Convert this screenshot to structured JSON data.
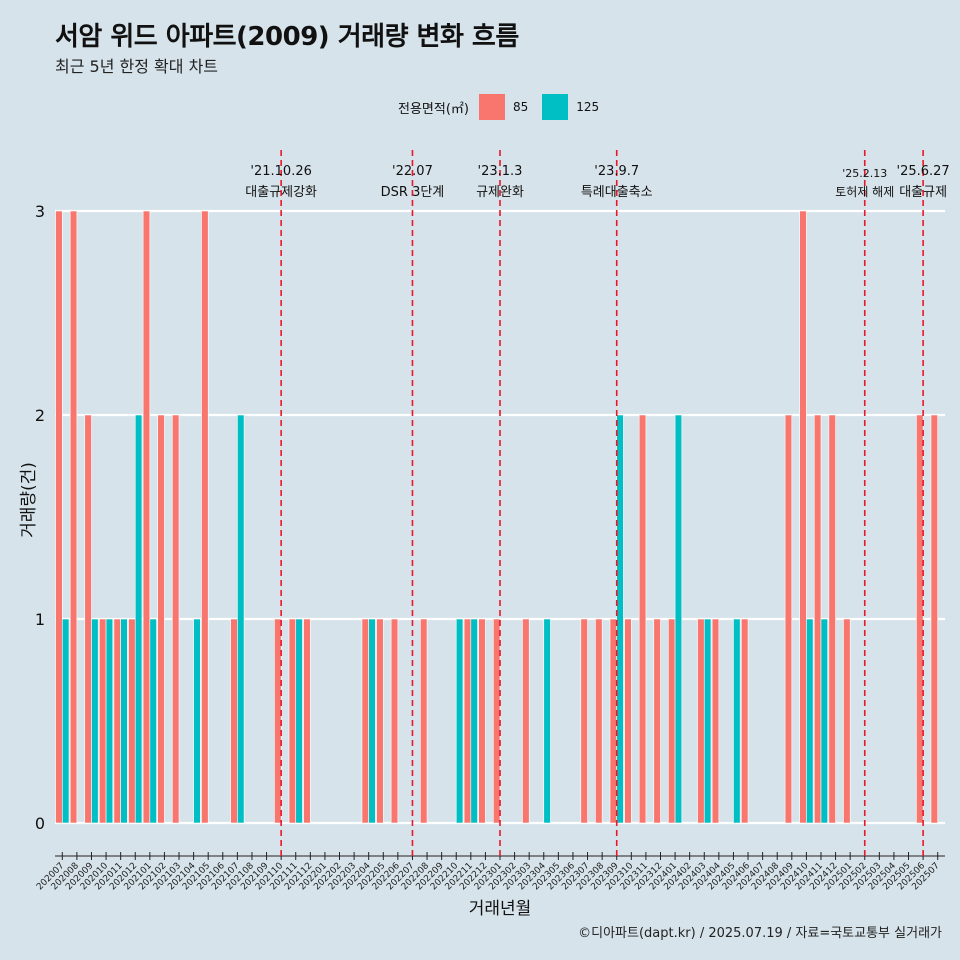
{
  "title": "서암 위드 아파트(2009) 거래량 변화 흐름",
  "subtitle": "최근 5년 한정 확대 차트",
  "legend": {
    "title": "전용면적(㎡)",
    "items": [
      {
        "label": "85",
        "color": "#f8766d"
      },
      {
        "label": "125",
        "color": "#00bfc4"
      }
    ]
  },
  "footer": "©디아파트(dapt.kr) / 2025.07.19 / 자료=국토교통부 실거래가",
  "chart_data": {
    "type": "bar",
    "xlabel": "거래년월",
    "ylabel": "거래량(건)",
    "ylim": [
      0,
      3
    ],
    "yticks": [
      0,
      1,
      2,
      3
    ],
    "categories": [
      "202007",
      "202008",
      "202009",
      "202010",
      "202011",
      "202012",
      "202101",
      "202102",
      "202103",
      "202104",
      "202105",
      "202106",
      "202107",
      "202108",
      "202109",
      "202110",
      "202111",
      "202112",
      "202201",
      "202202",
      "202203",
      "202204",
      "202205",
      "202206",
      "202207",
      "202208",
      "202209",
      "202210",
      "202211",
      "202212",
      "202301",
      "202302",
      "202303",
      "202304",
      "202305",
      "202306",
      "202307",
      "202308",
      "202309",
      "202310",
      "202311",
      "202312",
      "202401",
      "202402",
      "202403",
      "202404",
      "202405",
      "202406",
      "202407",
      "202408",
      "202409",
      "202410",
      "202411",
      "202412",
      "202501",
      "202502",
      "202503",
      "202504",
      "202505",
      "202506",
      "202507"
    ],
    "series": [
      {
        "name": "85",
        "color": "#f8766d",
        "values": [
          3,
          3,
          2,
          1,
          1,
          1,
          3,
          2,
          2,
          0,
          3,
          0,
          1,
          0,
          0,
          1,
          1,
          1,
          0,
          0,
          0,
          1,
          1,
          1,
          0,
          1,
          0,
          0,
          1,
          1,
          1,
          0,
          1,
          0,
          0,
          0,
          1,
          1,
          1,
          1,
          2,
          1,
          1,
          0,
          1,
          1,
          0,
          1,
          0,
          0,
          2,
          3,
          2,
          2,
          1,
          0,
          0,
          0,
          0,
          2,
          2
        ]
      },
      {
        "name": "125",
        "color": "#00bfc4",
        "values": [
          1,
          0,
          1,
          1,
          1,
          2,
          1,
          0,
          0,
          1,
          0,
          0,
          2,
          0,
          0,
          0,
          1,
          0,
          0,
          0,
          0,
          1,
          0,
          0,
          0,
          0,
          0,
          1,
          1,
          0,
          0,
          0,
          0,
          1,
          0,
          0,
          0,
          0,
          2,
          0,
          0,
          0,
          2,
          0,
          1,
          0,
          1,
          0,
          0,
          0,
          0,
          1,
          1,
          0,
          0,
          0,
          0,
          0,
          0,
          0,
          0
        ]
      }
    ],
    "annotations": [
      {
        "at": "202110",
        "date": "'21.10.26",
        "text": "대출규제강화"
      },
      {
        "at": "202207",
        "date": "'22.07",
        "text": "DSR 3단계"
      },
      {
        "at": "202301",
        "date": "'23.1.3",
        "text": "규제완화"
      },
      {
        "at": "202309",
        "date": "'23.9.7",
        "text": "특례대출축소"
      },
      {
        "at": "202502",
        "date": "'25.2.13",
        "text": "토허제 해제"
      },
      {
        "at": "202506",
        "date": "'25.6.27",
        "text": "대출규제"
      }
    ],
    "grid": true,
    "legend_position": "top"
  }
}
